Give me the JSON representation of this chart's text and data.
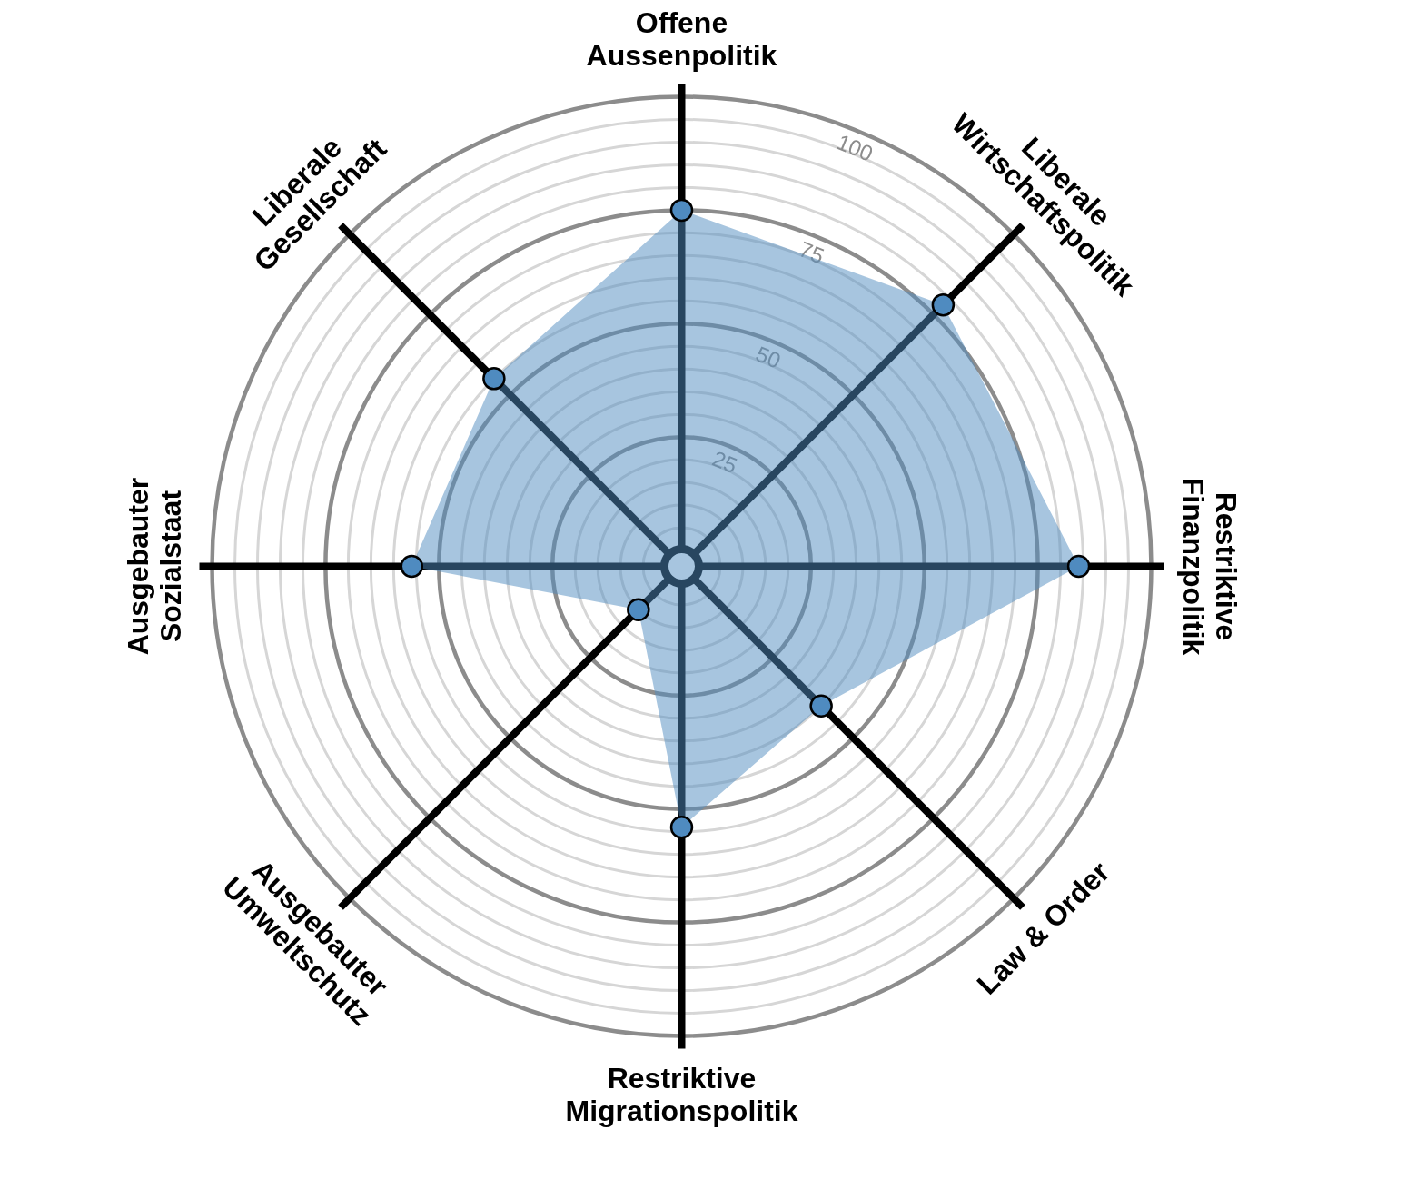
{
  "chart_data": {
    "type": "radar",
    "categories": [
      "Offene\nAussenpolitik",
      "Liberale\nWirtschaftspolitik",
      "Restriktive\nFinanzpolitik",
      "Law & Order",
      "Restriktive\nMigrationspolitik",
      "Ausgebauter\nUmweltschutz",
      "Ausgebauter\nSozialstaat",
      "Liberale\nGesellschaft"
    ],
    "series": [
      {
        "color": "#4f8bc0",
        "values": [
          75,
          78,
          84,
          40,
          54,
          10,
          56,
          55
        ]
      }
    ],
    "ylim": [
      -3.5,
      100
    ],
    "yticks": [
      25,
      50,
      75,
      100
    ],
    "grid": true,
    "marker": "circle"
  }
}
